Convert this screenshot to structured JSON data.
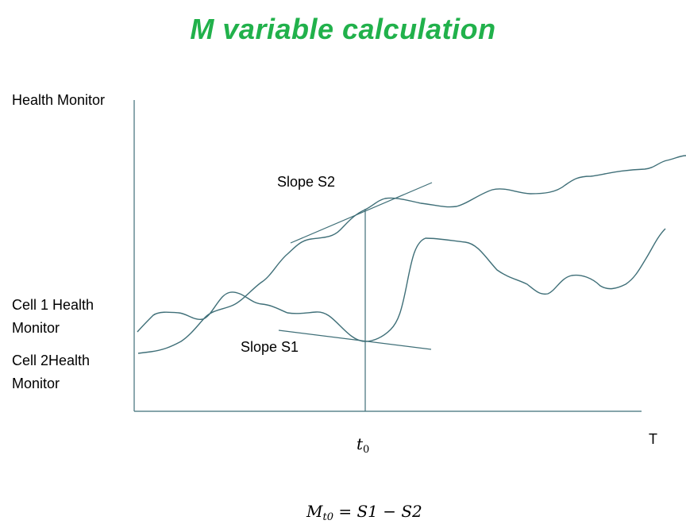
{
  "title": "M variable calculation",
  "colors": {
    "title": "#21b14b",
    "axis": "#3f6f78",
    "curve": "#3f6f78"
  },
  "axis": {
    "y_label": "Health Monitor",
    "x_label": "T"
  },
  "legend": {
    "cell1_line1": "Cell 1 Health",
    "cell1_line2": "Monitor",
    "cell2_line1": "Cell 2Health",
    "cell2_line2": "Monitor"
  },
  "annotations": {
    "slope_s2": "Slope S2",
    "slope_s1": "Slope S1"
  },
  "time_marker": {
    "symbol": "t",
    "subscript": "0"
  },
  "formula": {
    "lhs": "M",
    "lhs_sub": "t0",
    "rhs": "= S1 − S2"
  }
}
